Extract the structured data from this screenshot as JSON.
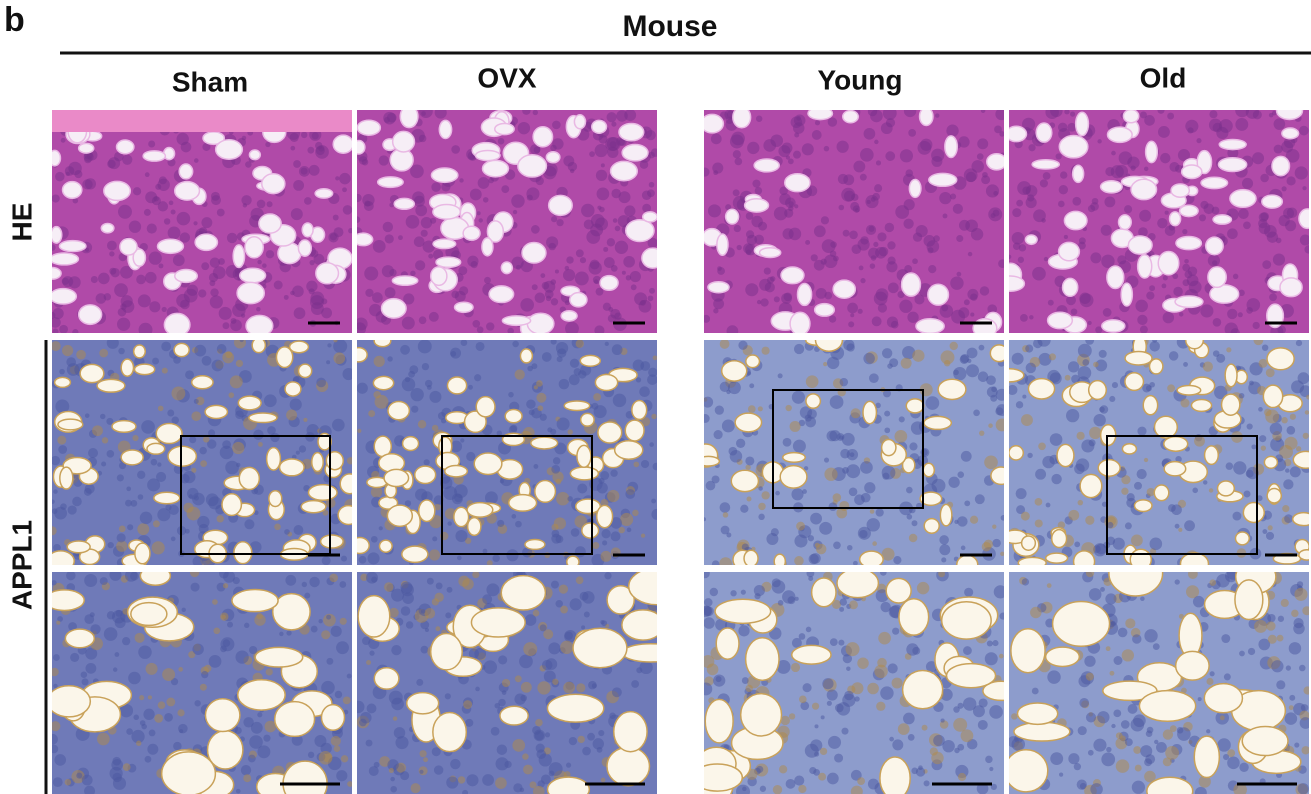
{
  "panel_label": "b",
  "header": {
    "title": "Mouse",
    "columns": [
      "Sham",
      "OVX",
      "Young",
      "Old"
    ]
  },
  "rows": [
    "HE",
    "APPL1"
  ]
}
